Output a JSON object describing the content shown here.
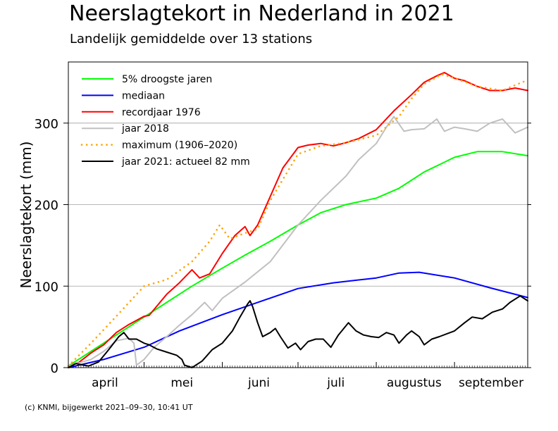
{
  "title": "Neerslagtekort in Nederland in 2021",
  "subtitle": "Landelijk gemiddelde over 13 stations",
  "credit": "(c) KNMI, bijgewerkt 2021–09–30, 10:41 UT",
  "chart_data": {
    "type": "line",
    "ylabel": "Neerslagtekort (mm)",
    "ylim": [
      0,
      375
    ],
    "xlim": [
      "2021-04-01",
      "2021-09-30"
    ],
    "months": [
      {
        "label": "april",
        "start": "2021-04-01",
        "end": "2021-04-30"
      },
      {
        "label": "mei",
        "start": "2021-05-01",
        "end": "2021-05-31"
      },
      {
        "label": "juni",
        "start": "2021-06-01",
        "end": "2021-06-30"
      },
      {
        "label": "juli",
        "start": "2021-07-01",
        "end": "2021-07-31"
      },
      {
        "label": "augustus",
        "start": "2021-08-01",
        "end": "2021-08-31"
      },
      {
        "label": "september",
        "start": "2021-09-01",
        "end": "2021-09-30"
      }
    ],
    "yticks": [
      0,
      100,
      200,
      300
    ],
    "grid": true,
    "legend_position": "top-left",
    "series": [
      {
        "name": "5% droogste jaren",
        "color": "#00ff00",
        "style": "solid",
        "points": [
          [
            "2021-04-01",
            2
          ],
          [
            "2021-04-10",
            20
          ],
          [
            "2021-04-20",
            40
          ],
          [
            "2021-05-01",
            62
          ],
          [
            "2021-05-10",
            80
          ],
          [
            "2021-05-20",
            100
          ],
          [
            "2021-06-01",
            122
          ],
          [
            "2021-06-10",
            138
          ],
          [
            "2021-06-20",
            155
          ],
          [
            "2021-07-01",
            175
          ],
          [
            "2021-07-10",
            190
          ],
          [
            "2021-07-20",
            200
          ],
          [
            "2021-08-01",
            208
          ],
          [
            "2021-08-10",
            220
          ],
          [
            "2021-08-20",
            240
          ],
          [
            "2021-09-01",
            258
          ],
          [
            "2021-09-10",
            265
          ],
          [
            "2021-09-20",
            265
          ],
          [
            "2021-09-30",
            260
          ]
        ]
      },
      {
        "name": "mediaan",
        "color": "#0000ff",
        "style": "solid",
        "points": [
          [
            "2021-04-01",
            0
          ],
          [
            "2021-04-15",
            10
          ],
          [
            "2021-05-01",
            25
          ],
          [
            "2021-05-15",
            45
          ],
          [
            "2021-06-01",
            65
          ],
          [
            "2021-06-15",
            80
          ],
          [
            "2021-07-01",
            97
          ],
          [
            "2021-07-15",
            104
          ],
          [
            "2021-08-01",
            110
          ],
          [
            "2021-08-10",
            116
          ],
          [
            "2021-08-18",
            117
          ],
          [
            "2021-09-01",
            110
          ],
          [
            "2021-09-15",
            98
          ],
          [
            "2021-09-30",
            86
          ]
        ]
      },
      {
        "name": "recordjaar 1976",
        "color": "#ff0000",
        "style": "solid",
        "points": [
          [
            "2021-04-01",
            2
          ],
          [
            "2021-04-05",
            6
          ],
          [
            "2021-04-10",
            18
          ],
          [
            "2021-04-15",
            28
          ],
          [
            "2021-04-20",
            43
          ],
          [
            "2021-04-25",
            53
          ],
          [
            "2021-05-01",
            63
          ],
          [
            "2021-05-03",
            64
          ],
          [
            "2021-05-10",
            90
          ],
          [
            "2021-05-15",
            104
          ],
          [
            "2021-05-20",
            120
          ],
          [
            "2021-05-23",
            110
          ],
          [
            "2021-05-27",
            115
          ],
          [
            "2021-06-01",
            140
          ],
          [
            "2021-06-06",
            162
          ],
          [
            "2021-06-10",
            173
          ],
          [
            "2021-06-12",
            162
          ],
          [
            "2021-06-15",
            175
          ],
          [
            "2021-06-20",
            210
          ],
          [
            "2021-06-25",
            245
          ],
          [
            "2021-07-01",
            270
          ],
          [
            "2021-07-05",
            273
          ],
          [
            "2021-07-10",
            275
          ],
          [
            "2021-07-15",
            272
          ],
          [
            "2021-07-20",
            276
          ],
          [
            "2021-07-25",
            281
          ],
          [
            "2021-08-01",
            292
          ],
          [
            "2021-08-08",
            315
          ],
          [
            "2021-08-15",
            335
          ],
          [
            "2021-08-20",
            350
          ],
          [
            "2021-08-25",
            358
          ],
          [
            "2021-08-28",
            362
          ],
          [
            "2021-09-01",
            355
          ],
          [
            "2021-09-05",
            352
          ],
          [
            "2021-09-10",
            345
          ],
          [
            "2021-09-15",
            340
          ],
          [
            "2021-09-20",
            340
          ],
          [
            "2021-09-25",
            343
          ],
          [
            "2021-09-30",
            340
          ]
        ]
      },
      {
        "name": "jaar 2018",
        "color": "#c0c0c0",
        "style": "solid",
        "points": [
          [
            "2021-04-01",
            2
          ],
          [
            "2021-04-10",
            10
          ],
          [
            "2021-04-15",
            20
          ],
          [
            "2021-04-20",
            33
          ],
          [
            "2021-04-25",
            36
          ],
          [
            "2021-04-27",
            30
          ],
          [
            "2021-04-28",
            3
          ],
          [
            "2021-05-01",
            10
          ],
          [
            "2021-05-05",
            25
          ],
          [
            "2021-05-10",
            38
          ],
          [
            "2021-05-15",
            52
          ],
          [
            "2021-05-20",
            65
          ],
          [
            "2021-05-25",
            80
          ],
          [
            "2021-05-28",
            70
          ],
          [
            "2021-06-01",
            85
          ],
          [
            "2021-06-10",
            105
          ],
          [
            "2021-06-20",
            130
          ],
          [
            "2021-07-01",
            175
          ],
          [
            "2021-07-10",
            205
          ],
          [
            "2021-07-20",
            235
          ],
          [
            "2021-07-25",
            255
          ],
          [
            "2021-08-01",
            275
          ],
          [
            "2021-08-05",
            295
          ],
          [
            "2021-08-08",
            308
          ],
          [
            "2021-08-12",
            290
          ],
          [
            "2021-08-15",
            292
          ],
          [
            "2021-08-20",
            293
          ],
          [
            "2021-08-25",
            305
          ],
          [
            "2021-08-28",
            290
          ],
          [
            "2021-09-01",
            295
          ],
          [
            "2021-09-05",
            293
          ],
          [
            "2021-09-10",
            290
          ],
          [
            "2021-09-15",
            300
          ],
          [
            "2021-09-20",
            305
          ],
          [
            "2021-09-25",
            288
          ],
          [
            "2021-09-30",
            295
          ]
        ]
      },
      {
        "name": "maximum (1906–2020)",
        "color": "#ffa500",
        "style": "dotted",
        "points": [
          [
            "2021-04-01",
            2
          ],
          [
            "2021-04-10",
            30
          ],
          [
            "2021-04-20",
            63
          ],
          [
            "2021-05-01",
            100
          ],
          [
            "2021-05-10",
            108
          ],
          [
            "2021-05-20",
            130
          ],
          [
            "2021-05-27",
            155
          ],
          [
            "2021-05-31",
            175
          ],
          [
            "2021-06-04",
            158
          ],
          [
            "2021-06-10",
            165
          ],
          [
            "2021-06-15",
            170
          ],
          [
            "2021-06-20",
            205
          ],
          [
            "2021-07-01",
            262
          ],
          [
            "2021-07-10",
            272
          ],
          [
            "2021-07-20",
            276
          ],
          [
            "2021-08-01",
            285
          ],
          [
            "2021-08-08",
            303
          ],
          [
            "2021-08-10",
            308
          ],
          [
            "2021-08-15",
            330
          ],
          [
            "2021-08-20",
            348
          ],
          [
            "2021-08-27",
            360
          ],
          [
            "2021-09-01",
            355
          ],
          [
            "2021-09-10",
            345
          ],
          [
            "2021-09-20",
            340
          ],
          [
            "2021-09-30",
            353
          ]
        ]
      },
      {
        "name": "jaar 2021: actueel 82 mm",
        "color": "#000000",
        "style": "solid",
        "points": [
          [
            "2021-04-01",
            0
          ],
          [
            "2021-04-04",
            5
          ],
          [
            "2021-04-07",
            3
          ],
          [
            "2021-04-09",
            2
          ],
          [
            "2021-04-13",
            7
          ],
          [
            "2021-04-17",
            22
          ],
          [
            "2021-04-21",
            38
          ],
          [
            "2021-04-23",
            43
          ],
          [
            "2021-04-25",
            35
          ],
          [
            "2021-04-28",
            35
          ],
          [
            "2021-05-01",
            30
          ],
          [
            "2021-05-03",
            28
          ],
          [
            "2021-05-06",
            23
          ],
          [
            "2021-05-10",
            19
          ],
          [
            "2021-05-14",
            15
          ],
          [
            "2021-05-16",
            10
          ],
          [
            "2021-05-17",
            3
          ],
          [
            "2021-05-20",
            0
          ],
          [
            "2021-05-24",
            8
          ],
          [
            "2021-05-28",
            22
          ],
          [
            "2021-06-01",
            30
          ],
          [
            "2021-06-05",
            45
          ],
          [
            "2021-06-08",
            62
          ],
          [
            "2021-06-11",
            78
          ],
          [
            "2021-06-12",
            82
          ],
          [
            "2021-06-13",
            75
          ],
          [
            "2021-06-15",
            55
          ],
          [
            "2021-06-17",
            38
          ],
          [
            "2021-06-20",
            43
          ],
          [
            "2021-06-22",
            48
          ],
          [
            "2021-06-24",
            38
          ],
          [
            "2021-06-27",
            24
          ],
          [
            "2021-06-30",
            30
          ],
          [
            "2021-07-02",
            22
          ],
          [
            "2021-07-05",
            32
          ],
          [
            "2021-07-08",
            35
          ],
          [
            "2021-07-11",
            35
          ],
          [
            "2021-07-14",
            25
          ],
          [
            "2021-07-17",
            40
          ],
          [
            "2021-07-21",
            55
          ],
          [
            "2021-07-24",
            45
          ],
          [
            "2021-07-27",
            40
          ],
          [
            "2021-07-30",
            38
          ],
          [
            "2021-08-02",
            37
          ],
          [
            "2021-08-05",
            43
          ],
          [
            "2021-08-08",
            40
          ],
          [
            "2021-08-10",
            30
          ],
          [
            "2021-08-13",
            40
          ],
          [
            "2021-08-15",
            45
          ],
          [
            "2021-08-18",
            38
          ],
          [
            "2021-08-20",
            28
          ],
          [
            "2021-08-23",
            35
          ],
          [
            "2021-08-26",
            38
          ],
          [
            "2021-09-01",
            45
          ],
          [
            "2021-09-05",
            55
          ],
          [
            "2021-09-08",
            62
          ],
          [
            "2021-09-12",
            60
          ],
          [
            "2021-09-16",
            68
          ],
          [
            "2021-09-20",
            72
          ],
          [
            "2021-09-23",
            80
          ],
          [
            "2021-09-27",
            88
          ],
          [
            "2021-09-30",
            82
          ]
        ]
      }
    ]
  }
}
